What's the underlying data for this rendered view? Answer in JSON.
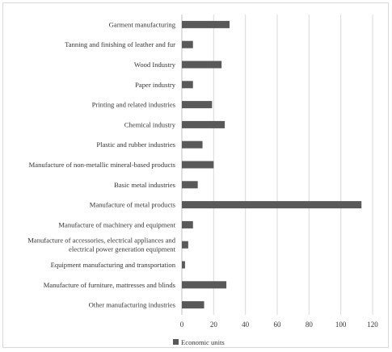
{
  "chart_data": {
    "type": "bar",
    "orientation": "horizontal",
    "title": "",
    "xlabel": "",
    "ylabel": "",
    "categories": [
      [
        "Garment manufacturing"
      ],
      [
        "Tanning and finishing of leather and fur"
      ],
      [
        "Wood Industry"
      ],
      [
        "Paper industry"
      ],
      [
        "Printing and related industries"
      ],
      [
        "Chemical industry"
      ],
      [
        "Plastic and rubber industries"
      ],
      [
        "Manufacture of non-metallic mineral-based products"
      ],
      [
        "Basic metal industries"
      ],
      [
        "Manufacture of metal products"
      ],
      [
        "Manufacture of machinery and equipment"
      ],
      [
        "Manufacture of accessories, electrical appliances and",
        "electrical power generation equipment"
      ],
      [
        "Equipment manufacturing and transportation"
      ],
      [
        "Manufacture of furniture, mattresses and blinds"
      ],
      [
        "Other manufacturing industries"
      ]
    ],
    "series": [
      {
        "name": "Economic units",
        "color": "#595959",
        "values": [
          30,
          7,
          25,
          7,
          19,
          27,
          13,
          20,
          10,
          113,
          7,
          4,
          2,
          28,
          14
        ]
      }
    ],
    "xlim": [
      0,
      120
    ],
    "xticks": [
      "0",
      "20",
      "40",
      "60",
      "80",
      "100",
      "120"
    ],
    "grid": true,
    "legend_position": "bottom"
  }
}
